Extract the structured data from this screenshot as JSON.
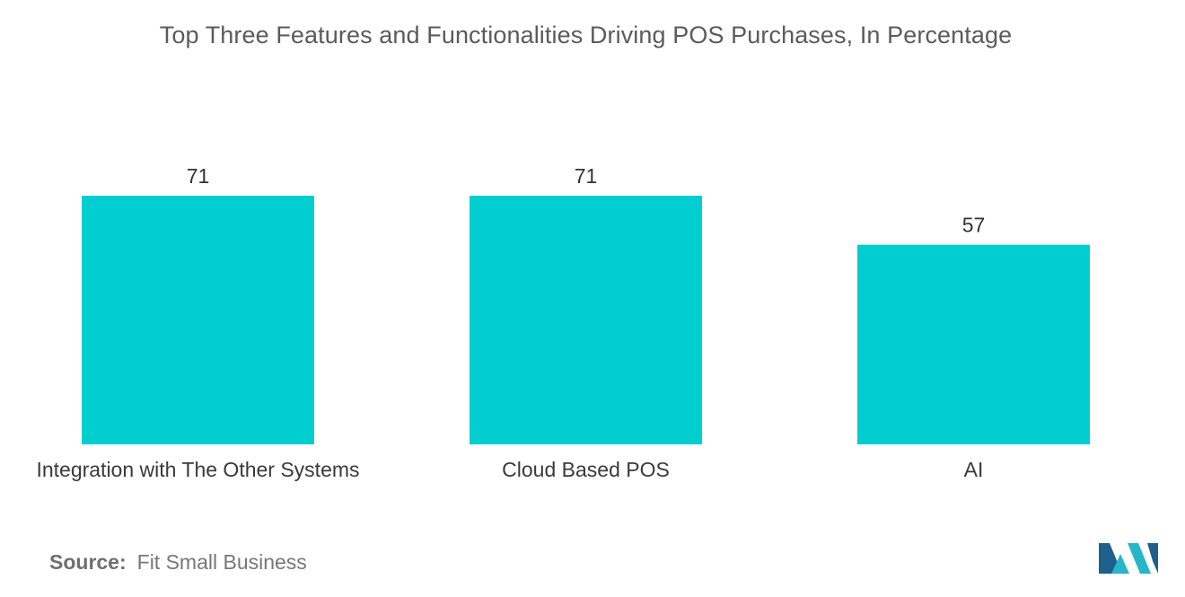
{
  "chart_data": {
    "type": "bar",
    "title": "Top Three Features and Functionalities Driving POS Purchases, In Percentage",
    "categories": [
      "Integration with The Other Systems",
      "Cloud Based POS",
      "AI"
    ],
    "values": [
      71,
      71,
      57
    ],
    "xlabel": "",
    "ylabel": "",
    "ylim": [
      0,
      71
    ],
    "grid": false,
    "bar_color": "#00CED1"
  },
  "source": {
    "label": "Source:",
    "text": "Fit Small Business"
  },
  "logo": {
    "icon": "mordor-intelligence-logo",
    "colors": [
      "#1f5f8b",
      "#27b5c9"
    ]
  }
}
